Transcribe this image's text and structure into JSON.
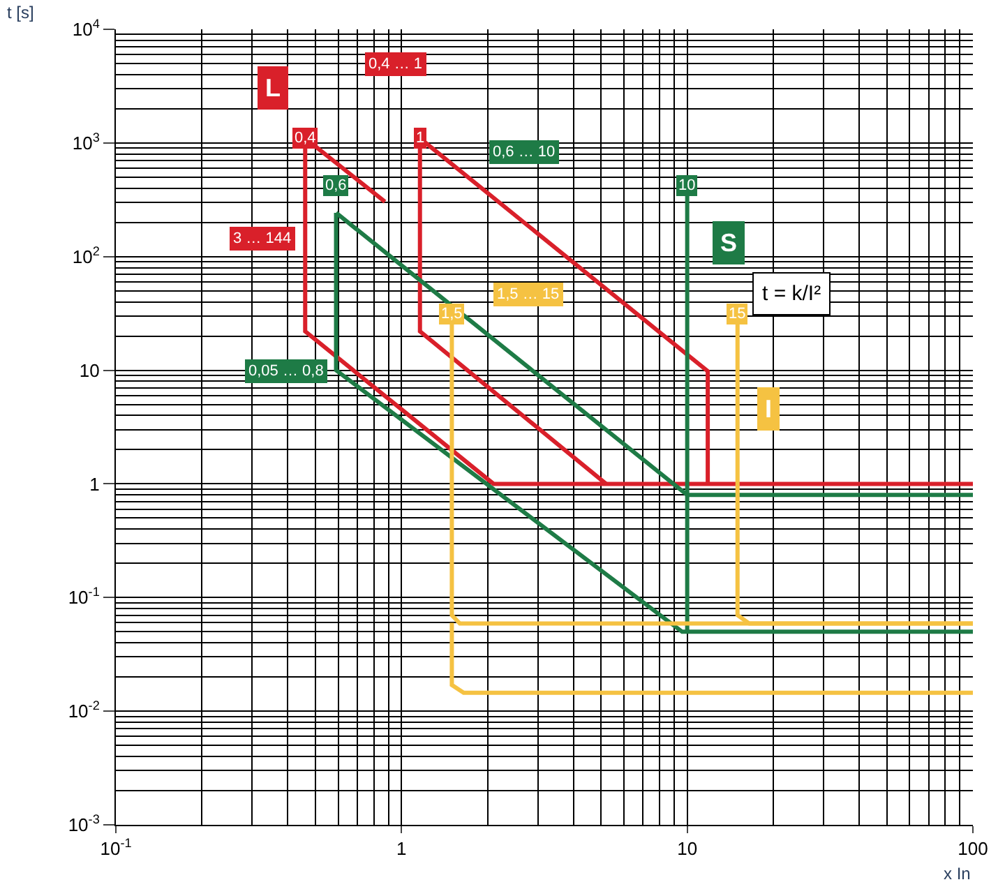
{
  "chart_data": {
    "type": "line",
    "xlabel": "x In",
    "ylabel": "t [s]",
    "series": [
      {
        "color": "#d9202a",
        "x": [
          0.46,
          0.46,
          2.1,
          100
        ],
        "values": [
          1100,
          22,
          1,
          1
        ]
      },
      {
        "color": "#d9202a",
        "x": [
          0.46,
          0.875
        ],
        "values": [
          1100,
          304
        ]
      },
      {
        "color": "#d9202a",
        "x": [
          1.16,
          1.16,
          5.2
        ],
        "values": [
          1100,
          22,
          1
        ]
      },
      {
        "color": "#d9202a",
        "x": [
          1.16,
          11.8,
          11.8
        ],
        "values": [
          1100,
          9.8,
          1
        ]
      },
      {
        "color": "#1e7b46",
        "x": [
          0.59,
          10,
          100
        ],
        "values": [
          243,
          0.8,
          0.8
        ]
      },
      {
        "color": "#1e7b46",
        "x": [
          0.59,
          0.59,
          9.6,
          100
        ],
        "values": [
          243,
          10,
          0.05,
          0.05
        ]
      },
      {
        "color": "#1e7b46",
        "x": [
          10,
          10
        ],
        "values": [
          425,
          0.05
        ]
      },
      {
        "color": "#f5c242",
        "x": [
          1.5,
          1.5,
          1.6,
          100
        ],
        "values": [
          31,
          0.07,
          0.059,
          0.059
        ]
      },
      {
        "color": "#f5c242",
        "x": [
          1.5,
          1.5,
          1.65,
          100
        ],
        "values": [
          0.06,
          0.017,
          0.0145,
          0.0145
        ]
      },
      {
        "color": "#f5c242",
        "x": [
          15,
          15,
          16.5,
          100
        ],
        "values": [
          31,
          0.07,
          0.059,
          0.059
        ]
      }
    ],
    "annotations": [
      "L",
      "0,4 … 1",
      "3 … 144",
      "S",
      "0,6 … 10",
      "0,05 … 0,8",
      "t = k/I²",
      "I",
      "1,5 … 15",
      {
        "text": "0,4",
        "x": 0.46,
        "y": 1100
      },
      {
        "text": "1",
        "x": 1.16,
        "y": 1100
      },
      {
        "text": "0,6",
        "x": 0.59,
        "y": 425
      },
      {
        "text": "10",
        "x": 10,
        "y": 425
      },
      {
        "text": "1,5",
        "x": 1.5,
        "y": 31
      },
      {
        "text": "15",
        "x": 15,
        "y": 31
      }
    ],
    "xlim": [
      0.1,
      100
    ],
    "ylim": [
      0.001,
      10000
    ],
    "log": "xy",
    "xticks": [
      {
        "value": 0.1,
        "label": "10$^{-1}$"
      },
      1,
      10,
      100
    ],
    "yticks": [
      {
        "value": 0.001,
        "label": "10$^{-3}$"
      },
      {
        "value": 0.01,
        "label": "10$^{-2}$"
      },
      {
        "value": 0.1,
        "label": "10$^{-1}$"
      },
      1,
      10,
      {
        "value": 100,
        "label": "10$^{2}$"
      },
      {
        "value": 1000,
        "label": "10$^{3}$"
      },
      {
        "value": 10000,
        "label": "10$^{4}$"
      }
    ],
    "grid": true,
    "line_style": "solid"
  }
}
